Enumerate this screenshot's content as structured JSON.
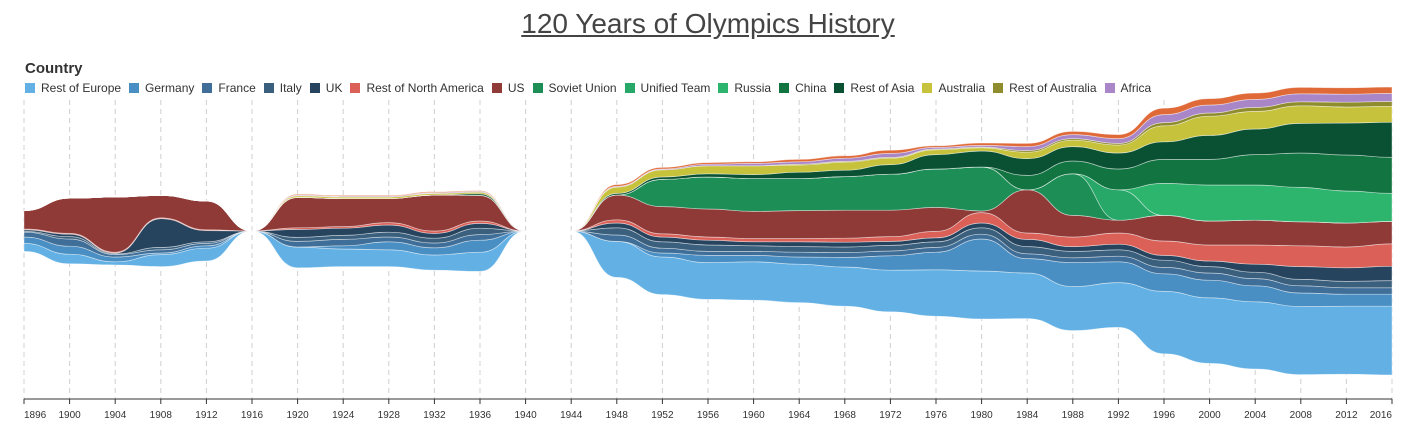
{
  "title": "120 Years of Olympics History",
  "legend_title": "Country",
  "chart_data": {
    "type": "area",
    "subtype": "streamgraph",
    "title": "120 Years of Olympics History",
    "legend_title": "Country",
    "legend_position": "top-left",
    "grid": "vertical dashed lines",
    "x": [
      1896,
      1900,
      1904,
      1908,
      1912,
      1916,
      1920,
      1924,
      1928,
      1932,
      1936,
      1940,
      1944,
      1948,
      1952,
      1956,
      1960,
      1964,
      1968,
      1972,
      1976,
      1980,
      1984,
      1988,
      1992,
      1996,
      2000,
      2004,
      2008,
      2012,
      2016
    ],
    "series": [
      {
        "name": "Rest of Europe",
        "color": "#62b0e4",
        "values": [
          10,
          12,
          4,
          15,
          16,
          0,
          26,
          22,
          21,
          19,
          24,
          0,
          0,
          45,
          47,
          46,
          48,
          48,
          49,
          52,
          58,
          60,
          57,
          55,
          56,
          78,
          82,
          84,
          85,
          85,
          86
        ]
      },
      {
        "name": "Germany",
        "color": "#4a8fc4",
        "values": [
          8,
          10,
          6,
          2,
          3,
          0,
          0,
          4,
          10,
          9,
          15,
          0,
          0,
          0,
          5,
          9,
          8,
          9,
          12,
          18,
          22,
          40,
          18,
          30,
          26,
          22,
          22,
          20,
          17,
          15,
          15
        ]
      },
      {
        "name": "France",
        "color": "#3f6e98",
        "values": [
          6,
          9,
          3,
          4,
          3,
          0,
          7,
          8,
          6,
          6,
          7,
          0,
          0,
          8,
          6,
          5,
          5,
          6,
          6,
          6,
          6,
          6,
          6,
          6,
          7,
          8,
          9,
          9,
          9,
          8,
          8
        ]
      },
      {
        "name": "Italy",
        "color": "#3b607e",
        "values": [
          1,
          3,
          1,
          3,
          2,
          0,
          5,
          5,
          6,
          6,
          8,
          0,
          0,
          9,
          8,
          8,
          7,
          7,
          7,
          7,
          7,
          8,
          9,
          8,
          8,
          9,
          8,
          8,
          8,
          8,
          9
        ]
      },
      {
        "name": "UK",
        "color": "#27445f",
        "values": [
          2,
          3,
          1,
          36,
          14,
          0,
          10,
          9,
          9,
          6,
          6,
          0,
          0,
          6,
          6,
          6,
          5,
          6,
          6,
          5,
          5,
          6,
          9,
          6,
          7,
          6,
          7,
          10,
          16,
          17,
          18
        ]
      },
      {
        "name": "Rest of North America",
        "color": "#db6058",
        "values": [
          1,
          1,
          1,
          1,
          1,
          0,
          2,
          2,
          3,
          3,
          3,
          0,
          0,
          4,
          4,
          4,
          4,
          4,
          5,
          6,
          8,
          13,
          8,
          12,
          14,
          18,
          20,
          24,
          26,
          26,
          28
        ]
      },
      {
        "name": "US",
        "color": "#903a37",
        "values": [
          23,
          44,
          69,
          28,
          36,
          0,
          38,
          35,
          30,
          45,
          32,
          0,
          0,
          31,
          34,
          35,
          34,
          35,
          35,
          33,
          30,
          2,
          54,
          27,
          16,
          32,
          30,
          31,
          30,
          30,
          28
        ]
      },
      {
        "name": "Soviet Union",
        "color": "#1d8e56",
        "values": [
          0,
          0,
          0,
          0,
          0,
          0,
          0,
          0,
          0,
          0,
          0,
          0,
          0,
          0,
          34,
          40,
          41,
          40,
          42,
          45,
          48,
          55,
          0,
          52,
          0,
          0,
          0,
          0,
          0,
          0,
          0
        ]
      },
      {
        "name": "Unified Team",
        "color": "#27a768",
        "values": [
          0,
          0,
          0,
          0,
          0,
          0,
          0,
          0,
          0,
          0,
          0,
          0,
          0,
          0,
          0,
          0,
          0,
          0,
          0,
          0,
          0,
          0,
          0,
          0,
          38,
          0,
          0,
          0,
          0,
          0,
          0
        ]
      },
      {
        "name": "Russia",
        "color": "#2db56e",
        "values": [
          0,
          0,
          0,
          0,
          0,
          0,
          0,
          0,
          0,
          0,
          0,
          0,
          0,
          0,
          0,
          0,
          0,
          0,
          0,
          0,
          0,
          0,
          0,
          0,
          0,
          40,
          45,
          44,
          43,
          40,
          35
        ]
      },
      {
        "name": "China",
        "color": "#127441",
        "values": [
          0,
          0,
          0,
          0,
          0,
          0,
          0,
          0,
          0,
          0,
          0,
          0,
          0,
          0,
          0,
          0,
          0,
          0,
          0,
          0,
          0,
          0,
          18,
          16,
          26,
          30,
          32,
          38,
          43,
          45,
          45
        ]
      },
      {
        "name": "Rest of Asia",
        "color": "#0a5133",
        "values": [
          0,
          0,
          0,
          0,
          0,
          0,
          0,
          0,
          0,
          0,
          2,
          0,
          0,
          2,
          3,
          4,
          5,
          8,
          8,
          12,
          18,
          20,
          21,
          18,
          20,
          22,
          30,
          32,
          37,
          40,
          44
        ]
      },
      {
        "name": "Australia",
        "color": "#c7c23c",
        "values": [
          0,
          0,
          0,
          0,
          0,
          0,
          2,
          2,
          2,
          2,
          2,
          0,
          0,
          8,
          9,
          10,
          11,
          9,
          10,
          8,
          6,
          4,
          8,
          8,
          10,
          20,
          24,
          22,
          22,
          20,
          20
        ]
      },
      {
        "name": "Rest of Australia",
        "color": "#8f8c2e",
        "values": [
          0,
          0,
          0,
          0,
          0,
          0,
          0,
          0,
          0,
          0,
          0,
          0,
          0,
          0,
          0,
          0,
          0,
          1,
          1,
          1,
          1,
          1,
          2,
          2,
          2,
          4,
          4,
          5,
          5,
          6,
          6
        ]
      },
      {
        "name": "Africa",
        "color": "#a886c8",
        "values": [
          0,
          0,
          0,
          0,
          0,
          0,
          1,
          1,
          1,
          1,
          1,
          0,
          0,
          1,
          1,
          2,
          3,
          3,
          4,
          5,
          2,
          2,
          5,
          5,
          6,
          10,
          10,
          10,
          10,
          10,
          10
        ]
      },
      {
        "name": "",
        "color": "#df6a38",
        "values": [
          0,
          0,
          0,
          0,
          0,
          0,
          1,
          1,
          1,
          1,
          1,
          0,
          0,
          2,
          2,
          2,
          2,
          3,
          3,
          4,
          2,
          3,
          4,
          4,
          5,
          8,
          8,
          8,
          8,
          8,
          8
        ]
      }
    ]
  }
}
